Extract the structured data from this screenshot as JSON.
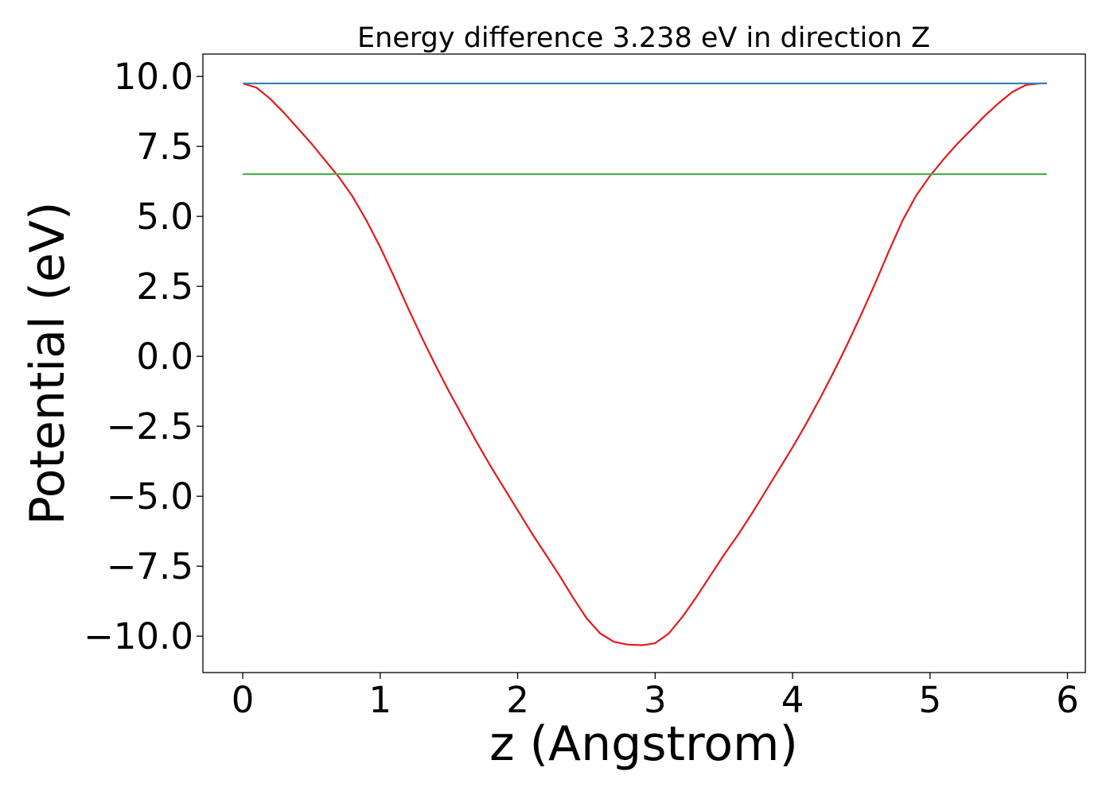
{
  "chart_data": {
    "type": "line",
    "title": "Energy difference 3.238 eV in direction Z",
    "xlabel": "z (Angstrom)",
    "ylabel": "Potential (eV)",
    "xlim": [
      -0.29,
      6.13
    ],
    "ylim": [
      -11.3,
      10.8
    ],
    "xticks": [
      0,
      1,
      2,
      3,
      4,
      5,
      6
    ],
    "xtick_labels": [
      "0",
      "1",
      "2",
      "3",
      "4",
      "5",
      "6"
    ],
    "yticks": [
      10,
      7.5,
      5,
      2.5,
      0,
      -2.5,
      -5,
      -7.5,
      -10
    ],
    "ytick_labels": [
      "10.0",
      "7.5",
      "5.0",
      "2.5",
      "0.0",
      "−2.5",
      "−5.0",
      "−7.5",
      "−10.0"
    ],
    "grid": false,
    "legend": "none",
    "series": [
      {
        "color": "#e41a1c",
        "x": [
          0.0,
          0.1,
          0.2,
          0.3,
          0.4,
          0.5,
          0.6,
          0.7,
          0.8,
          0.9,
          1.0,
          1.1,
          1.2,
          1.3,
          1.4,
          1.5,
          1.6,
          1.7,
          1.8,
          1.9,
          2.0,
          2.1,
          2.2,
          2.3,
          2.4,
          2.5,
          2.6,
          2.7,
          2.8,
          2.9,
          2.94,
          3.0,
          3.1,
          3.2,
          3.3,
          3.4,
          3.5,
          3.6,
          3.7,
          3.8,
          3.9,
          4.0,
          4.1,
          4.2,
          4.3,
          4.4,
          4.5,
          4.6,
          4.7,
          4.8,
          4.9,
          5.0,
          5.1,
          5.2,
          5.3,
          5.4,
          5.5,
          5.6,
          5.7,
          5.8,
          5.85
        ],
        "y": [
          9.75,
          9.6,
          9.2,
          8.7,
          8.15,
          7.6,
          7.0,
          6.4,
          5.7,
          4.85,
          3.9,
          2.85,
          1.75,
          0.7,
          -0.3,
          -1.25,
          -2.15,
          -3.05,
          -3.9,
          -4.7,
          -5.5,
          -6.3,
          -7.05,
          -7.8,
          -8.6,
          -9.35,
          -9.9,
          -10.2,
          -10.3,
          -10.32,
          -10.3,
          -10.25,
          -9.9,
          -9.3,
          -8.6,
          -7.85,
          -7.1,
          -6.4,
          -5.65,
          -4.85,
          -4.05,
          -3.25,
          -2.4,
          -1.5,
          -0.55,
          0.45,
          1.5,
          2.6,
          3.75,
          4.85,
          5.75,
          6.45,
          7.05,
          7.6,
          8.1,
          8.6,
          9.05,
          9.45,
          9.7,
          9.75,
          9.75
        ]
      },
      {
        "color": "#377eb8",
        "x": [
          0.0,
          5.85
        ],
        "y": [
          9.75,
          9.75
        ]
      },
      {
        "color": "#4daf4a",
        "x": [
          0.0,
          5.85
        ],
        "y": [
          6.51,
          6.51
        ]
      }
    ]
  }
}
